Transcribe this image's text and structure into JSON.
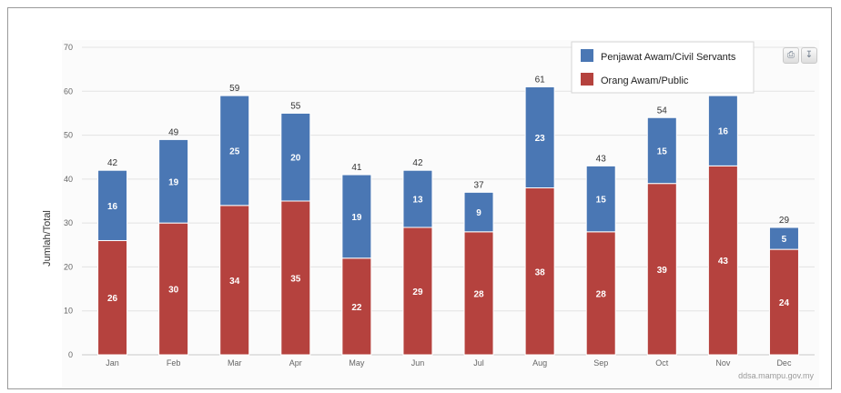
{
  "chart_data": {
    "type": "bar",
    "stacked": true,
    "categories": [
      "Jan",
      "Feb",
      "Mar",
      "Apr",
      "May",
      "Jun",
      "Jul",
      "Aug",
      "Sep",
      "Oct",
      "Nov",
      "Dec"
    ],
    "series": [
      {
        "name": "Orang Awam/Public",
        "color": "#b5423e",
        "values": [
          26,
          30,
          34,
          35,
          22,
          29,
          28,
          38,
          28,
          39,
          43,
          24
        ]
      },
      {
        "name": "Penjawat Awam/Civil Servants",
        "color": "#4a77b4",
        "values": [
          16,
          19,
          25,
          20,
          19,
          13,
          9,
          23,
          15,
          15,
          16,
          5
        ]
      }
    ],
    "totals": [
      42,
      49,
      59,
      55,
      41,
      42,
      37,
      61,
      43,
      54,
      59,
      29
    ],
    "ylabel": "Jumlah/Total",
    "xlabel": "",
    "ylim": [
      0,
      70
    ],
    "yticks": [
      0,
      10,
      20,
      30,
      40,
      50,
      60,
      70
    ],
    "grid": true,
    "legend_position": "top-right"
  },
  "credit": "ddsa.mampu.gov.my",
  "toolbar": {
    "print_icon": "print-icon",
    "export_icon": "download-icon"
  }
}
